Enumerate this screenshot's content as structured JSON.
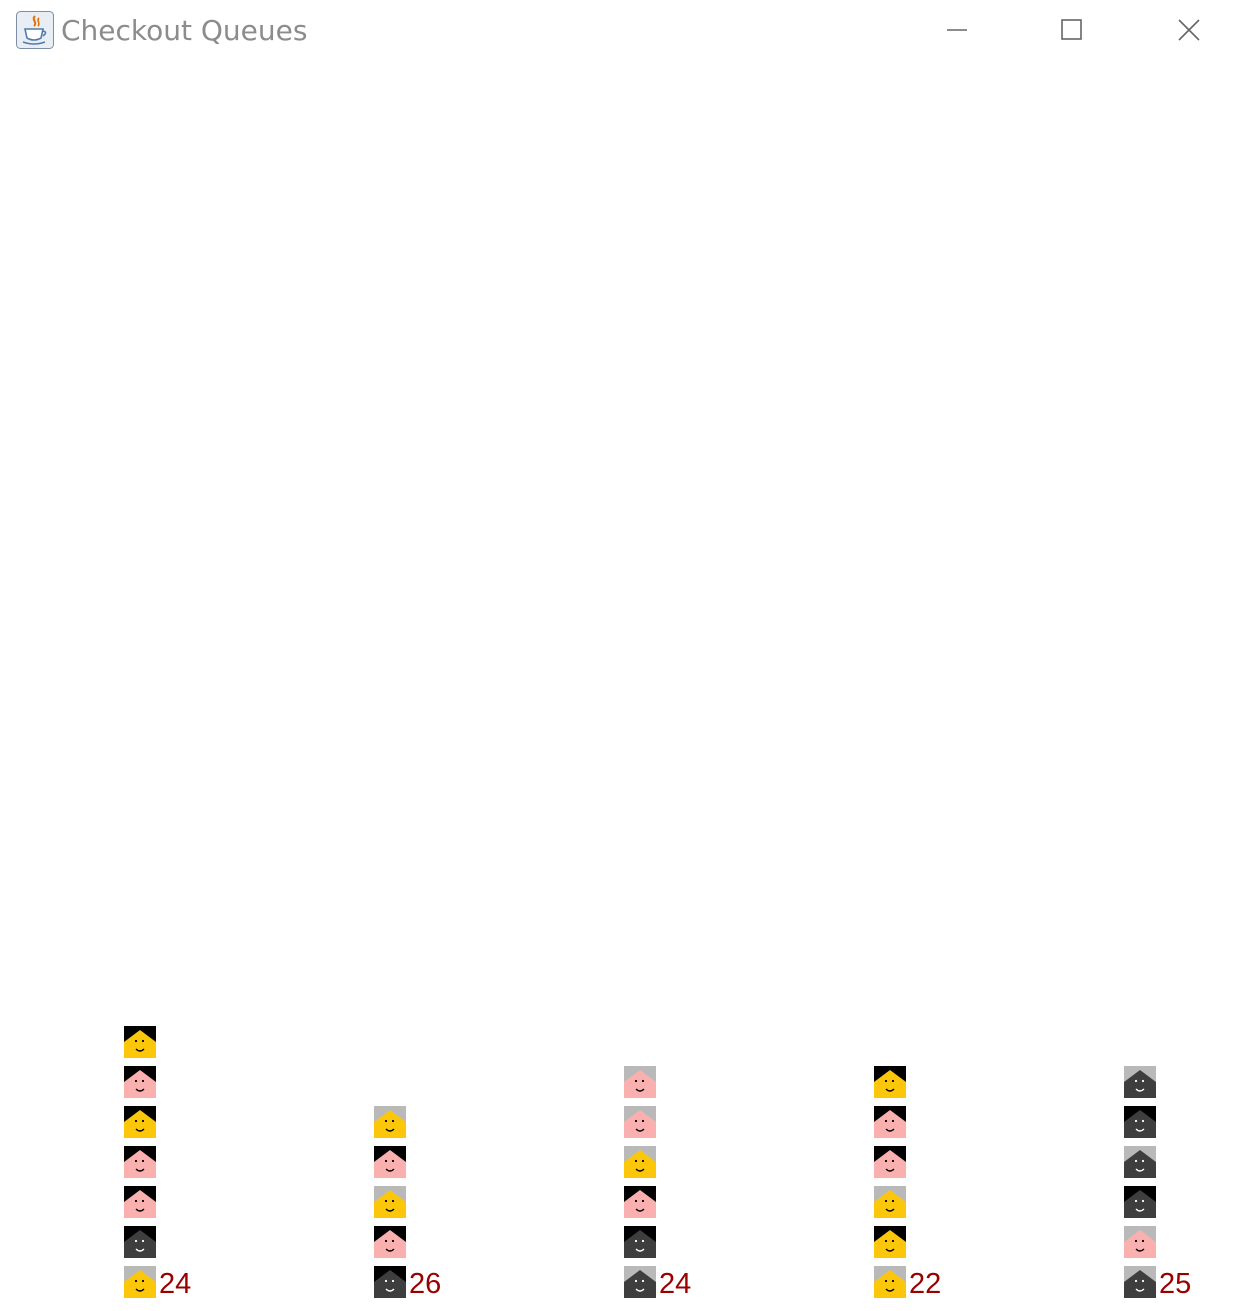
{
  "window": {
    "title": "Checkout Queues",
    "app_icon": "java-cup-icon",
    "controls": {
      "minimize": "minimize-icon",
      "maximize": "maximize-icon",
      "close": "close-icon"
    }
  },
  "colors": {
    "skin_yellow": "#fcc70a",
    "skin_pink": "#fbb0b0",
    "skin_dark": "#3e3e3e",
    "hair_black": "#000000",
    "hair_gray": "#b9b9b9",
    "count_text": "#990000",
    "title_text": "#8c8c8c"
  },
  "queues": [
    {
      "count": "24",
      "customers": [
        {
          "skin": "yellow",
          "hair": "gray"
        },
        {
          "skin": "dark",
          "hair": "black"
        },
        {
          "skin": "pink",
          "hair": "black"
        },
        {
          "skin": "pink",
          "hair": "black"
        },
        {
          "skin": "yellow",
          "hair": "black"
        },
        {
          "skin": "pink",
          "hair": "black"
        },
        {
          "skin": "yellow",
          "hair": "black"
        }
      ]
    },
    {
      "count": "26",
      "customers": [
        {
          "skin": "dark",
          "hair": "black"
        },
        {
          "skin": "pink",
          "hair": "black"
        },
        {
          "skin": "yellow",
          "hair": "gray"
        },
        {
          "skin": "pink",
          "hair": "black"
        },
        {
          "skin": "yellow",
          "hair": "gray"
        }
      ]
    },
    {
      "count": "24",
      "customers": [
        {
          "skin": "dark",
          "hair": "gray"
        },
        {
          "skin": "dark",
          "hair": "black"
        },
        {
          "skin": "pink",
          "hair": "black"
        },
        {
          "skin": "yellow",
          "hair": "gray"
        },
        {
          "skin": "pink",
          "hair": "gray"
        },
        {
          "skin": "pink",
          "hair": "gray"
        }
      ]
    },
    {
      "count": "22",
      "customers": [
        {
          "skin": "yellow",
          "hair": "gray"
        },
        {
          "skin": "yellow",
          "hair": "black"
        },
        {
          "skin": "yellow",
          "hair": "gray"
        },
        {
          "skin": "pink",
          "hair": "black"
        },
        {
          "skin": "pink",
          "hair": "black"
        },
        {
          "skin": "yellow",
          "hair": "black"
        }
      ]
    },
    {
      "count": "25",
      "customers": [
        {
          "skin": "dark",
          "hair": "gray"
        },
        {
          "skin": "pink",
          "hair": "gray"
        },
        {
          "skin": "dark",
          "hair": "black"
        },
        {
          "skin": "dark",
          "hair": "gray"
        },
        {
          "skin": "dark",
          "hair": "black"
        },
        {
          "skin": "dark",
          "hair": "gray"
        }
      ]
    }
  ]
}
